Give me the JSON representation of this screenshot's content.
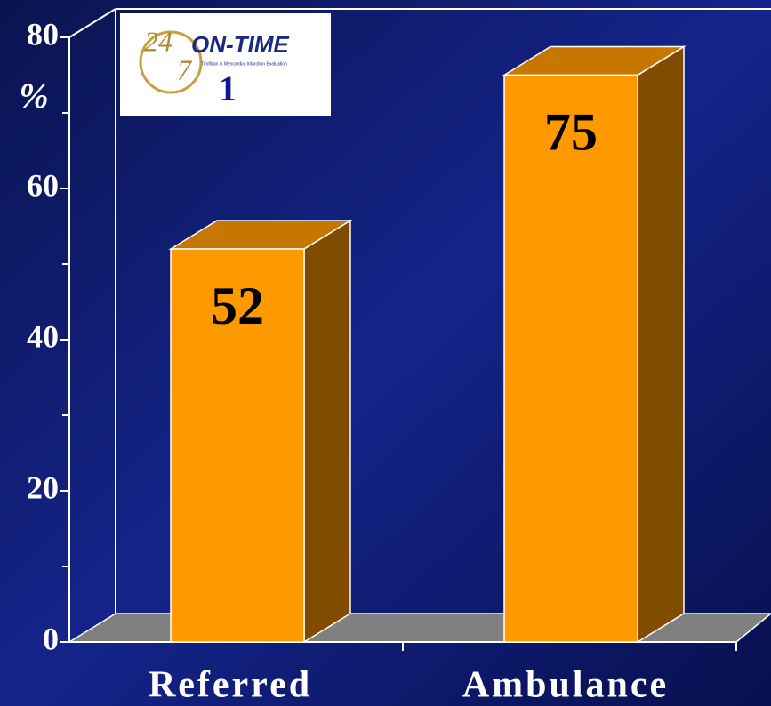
{
  "chart_data": {
    "type": "bar3d",
    "categories": [
      "Referred",
      "Ambulance"
    ],
    "values": [
      52,
      75
    ],
    "color": "#ff9900",
    "ylabel": "%",
    "ylim": [
      0,
      80
    ],
    "yticks": [
      0,
      20,
      40,
      60,
      80
    ],
    "minor_yticks": [
      10,
      30,
      50,
      70
    ]
  },
  "logo": {
    "number_top": "24",
    "number_bottom": "7",
    "name": "ON-TIME",
    "subtitle": "Tirofiban in Myocardial Infarction Evaluation",
    "study": "1"
  }
}
